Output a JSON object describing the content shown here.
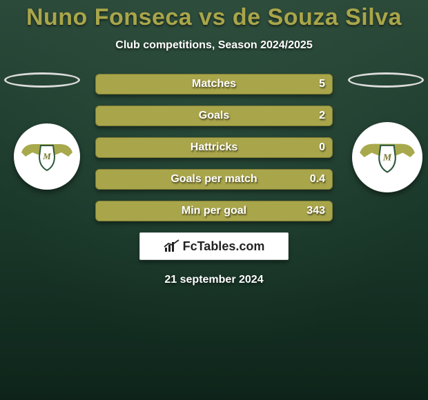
{
  "title": "Nuno Fonseca vs de Souza Silva",
  "subtitle": "Club competitions, Season 2024/2025",
  "theme": {
    "accent": "#a9a54a",
    "accent_dark": "#88852f",
    "accent_border": "#7d7a33",
    "text_white": "#ffffff",
    "bg_gradient_top": "#2c4a3a",
    "bg_gradient_mid": "#1a382a",
    "bg_gradient_bottom": "#0e241a"
  },
  "stats": [
    {
      "label": "Matches",
      "value": "5",
      "fill_pct": 0
    },
    {
      "label": "Goals",
      "value": "2",
      "fill_pct": 0
    },
    {
      "label": "Hattricks",
      "value": "0",
      "fill_pct": 0
    },
    {
      "label": "Goals per match",
      "value": "0.4",
      "fill_pct": 0
    },
    {
      "label": "Min per goal",
      "value": "343",
      "fill_pct": 0
    }
  ],
  "branding": {
    "site": "FcTables.com"
  },
  "date": "21 september 2024",
  "club_badge": {
    "wing_color": "#a8a94c",
    "shield_fill": "#ffffff",
    "shield_stroke": "#2d5a3d",
    "letters_color": "#777732"
  }
}
